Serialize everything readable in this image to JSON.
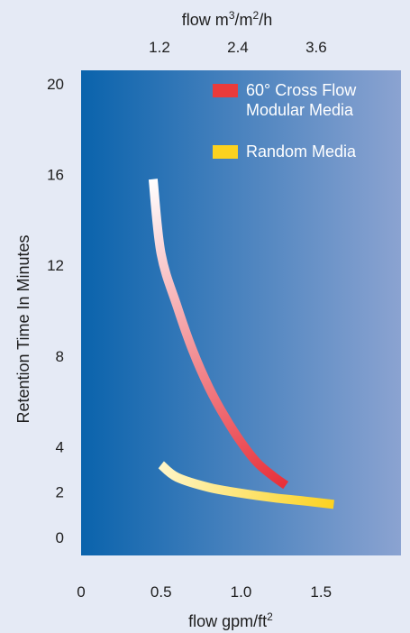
{
  "chart_data": {
    "type": "line",
    "xlabel": "flow gpm/ft",
    "xlabel_sup": "2",
    "x2label_parts": [
      "flow m",
      "3",
      "/m",
      "2",
      "/h"
    ],
    "ylabel": "Retention Time In Minutes",
    "xlim": [
      0,
      2.0
    ],
    "ylim": [
      -0.8,
      20.6
    ],
    "x_ticks": [
      0,
      0.5,
      1.0,
      1.5
    ],
    "x_tick_labels": [
      "0",
      "0.5",
      "1.0",
      "1.5"
    ],
    "x2_ticks": [
      0.49,
      0.98,
      1.47
    ],
    "x2_tick_labels": [
      "1.2",
      "2.4",
      "3.6"
    ],
    "y_ticks": [
      0,
      2,
      4,
      8,
      12,
      16,
      20
    ],
    "y_tick_labels": [
      "0",
      "2",
      "4",
      "8",
      "12",
      "16",
      "20"
    ],
    "legend_position": "top-right",
    "background_gradient": [
      "#0a63ac",
      "#8ba3d1"
    ],
    "series": [
      {
        "name": "60° Cross Flow Modular Media",
        "name_lines": [
          "60° Cross Flow",
          "Modular Media"
        ],
        "color": "#ea3b3b",
        "gradient": [
          "#ffffff",
          "#e8303a"
        ],
        "x": [
          0.45,
          0.5,
          0.6,
          0.7,
          0.8,
          0.9,
          1.0,
          1.1,
          1.2,
          1.28
        ],
        "y": [
          15.8,
          12.5,
          10.2,
          8.2,
          6.6,
          5.3,
          4.2,
          3.3,
          2.7,
          2.3
        ]
      },
      {
        "name": "Random Media",
        "name_lines": [
          "Random Media"
        ],
        "color": "#fcd21f",
        "gradient": [
          "#fff6c8",
          "#fcd21f"
        ],
        "x": [
          0.5,
          0.6,
          0.8,
          1.0,
          1.2,
          1.4,
          1.58
        ],
        "y": [
          3.2,
          2.65,
          2.2,
          1.95,
          1.75,
          1.6,
          1.45
        ]
      }
    ]
  }
}
